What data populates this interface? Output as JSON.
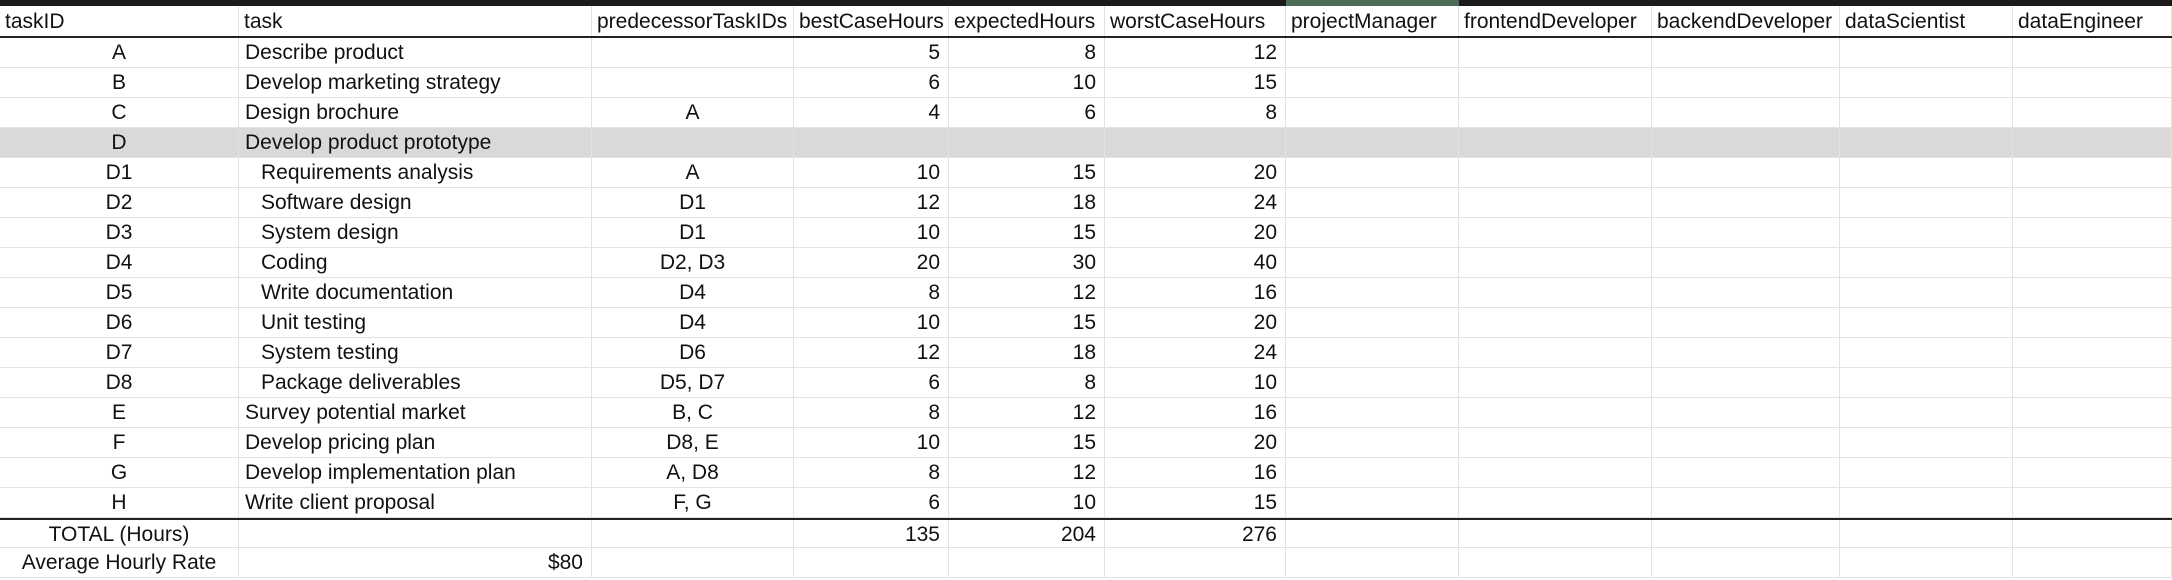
{
  "headers": [
    "taskID",
    "task",
    "predecessorTaskIDs",
    "bestCaseHours",
    "expectedHours",
    "worstCaseHours",
    "projectManager",
    "frontendDeveloper",
    "backendDeveloper",
    "dataScientist",
    "dataEngineer"
  ],
  "rows": [
    {
      "id": "A",
      "task": "Describe product",
      "pred": "",
      "best": "5",
      "exp": "8",
      "worst": "12"
    },
    {
      "id": "B",
      "task": "Develop marketing strategy",
      "pred": "",
      "best": "6",
      "exp": "10",
      "worst": "15"
    },
    {
      "id": "C",
      "task": "Design brochure",
      "pred": "A",
      "best": "4",
      "exp": "6",
      "worst": "8"
    },
    {
      "id": "D",
      "task": "Develop product  prototype",
      "pred": "",
      "best": "",
      "exp": "",
      "worst": ""
    },
    {
      "id": "D1",
      "task": "Requirements analysis",
      "pred": "A",
      "best": "10",
      "exp": "15",
      "worst": "20"
    },
    {
      "id": "D2",
      "task": "Software design",
      "pred": "D1",
      "best": "12",
      "exp": "18",
      "worst": "24"
    },
    {
      "id": "D3",
      "task": "System design",
      "pred": "D1",
      "best": "10",
      "exp": "15",
      "worst": "20"
    },
    {
      "id": "D4",
      "task": "Coding",
      "pred": "D2, D3",
      "best": "20",
      "exp": "30",
      "worst": "40"
    },
    {
      "id": "D5",
      "task": "Write documentation",
      "pred": "D4",
      "best": "8",
      "exp": "12",
      "worst": "16"
    },
    {
      "id": "D6",
      "task": "Unit testing",
      "pred": "D4",
      "best": "10",
      "exp": "15",
      "worst": "20"
    },
    {
      "id": "D7",
      "task": "System testing",
      "pred": "D6",
      "best": "12",
      "exp": "18",
      "worst": "24"
    },
    {
      "id": "D8",
      "task": "Package deliverables",
      "pred": "D5, D7",
      "best": "6",
      "exp": "8",
      "worst": "10"
    },
    {
      "id": "E",
      "task": "Survey potential market",
      "pred": "B, C",
      "best": "8",
      "exp": "12",
      "worst": "16"
    },
    {
      "id": "F",
      "task": "Develop pricing plan",
      "pred": "D8, E",
      "best": "10",
      "exp": "15",
      "worst": "20"
    },
    {
      "id": "G",
      "task": "Develop implementation  plan",
      "pred": "A, D8",
      "best": "8",
      "exp": "12",
      "worst": "16"
    },
    {
      "id": "H",
      "task": "Write client proposal",
      "pred": "F, G",
      "best": "6",
      "exp": "10",
      "worst": "15"
    }
  ],
  "total": {
    "label": "TOTAL (Hours)",
    "best": "135",
    "exp": "204",
    "worst": "276"
  },
  "rate": {
    "label": "Average Hourly Rate",
    "value": "$80"
  }
}
